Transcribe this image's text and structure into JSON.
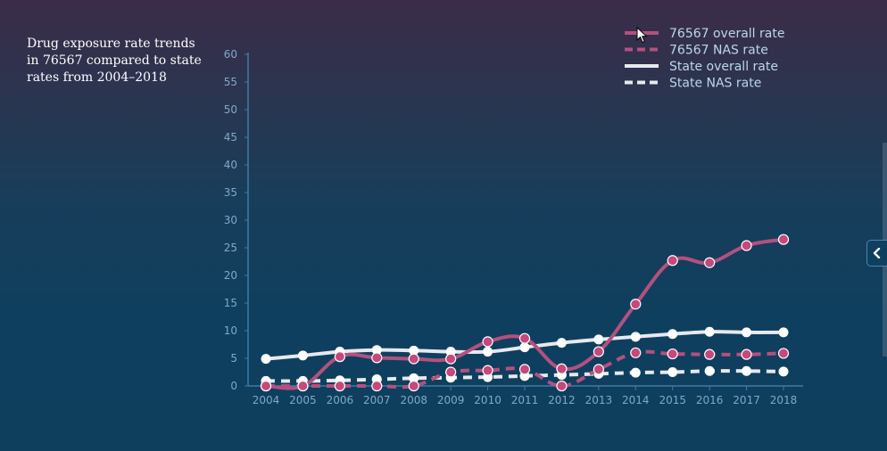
{
  "title": "Drug exposure rate trends in 76567 compared to state rates from 2004–2018",
  "colors": {
    "zip": "#b2517f",
    "zip_marker_fill": "#c5497b",
    "state": "#e7e9ee",
    "axis": "#3e7ba6",
    "tick_text": "#7fa9c9",
    "legend_text": "#b9d7ea"
  },
  "icons": {
    "collapse": "chevron-left-icon",
    "cursor": "mouse-pointer-icon"
  },
  "chart_data": {
    "type": "line",
    "title": "Drug exposure rate trends in 76567 compared to state rates from 2004–2018",
    "xlabel": "",
    "ylabel": "",
    "x": [
      "2004",
      "2005",
      "2006",
      "2007",
      "2008",
      "2009",
      "2010",
      "2011",
      "2012",
      "2013",
      "2014",
      "2015",
      "2016",
      "2017",
      "2018"
    ],
    "ylim": [
      0,
      60
    ],
    "yticks": [
      0,
      5,
      10,
      15,
      20,
      25,
      30,
      35,
      40,
      45,
      50,
      55,
      60
    ],
    "grid": false,
    "legend_position": "top-right",
    "series": [
      {
        "name": "76567 overall rate",
        "style": "solid",
        "color": "#b2517f",
        "values": [
          0,
          0,
          5.3,
          5.1,
          4.9,
          4.9,
          8.0,
          8.6,
          3.1,
          6.2,
          14.8,
          22.7,
          22.3,
          25.4,
          26.5
        ]
      },
      {
        "name": "76567 NAS rate",
        "style": "dashed",
        "color": "#b2517f",
        "values": [
          0,
          0,
          0,
          0,
          0,
          2.5,
          2.8,
          3.0,
          0,
          3.0,
          6.0,
          5.8,
          5.7,
          5.7,
          5.9
        ]
      },
      {
        "name": "State overall rate",
        "style": "solid",
        "color": "#e7e9ee",
        "values": [
          4.9,
          5.5,
          6.2,
          6.5,
          6.4,
          6.2,
          6.2,
          7.0,
          7.8,
          8.4,
          8.9,
          9.4,
          9.8,
          9.7,
          9.7
        ]
      },
      {
        "name": "State NAS rate",
        "style": "dashed",
        "color": "#e7e9ee",
        "values": [
          0.9,
          0.9,
          1.0,
          1.2,
          1.4,
          1.5,
          1.6,
          1.8,
          2.0,
          2.2,
          2.4,
          2.5,
          2.7,
          2.7,
          2.6
        ]
      }
    ]
  }
}
